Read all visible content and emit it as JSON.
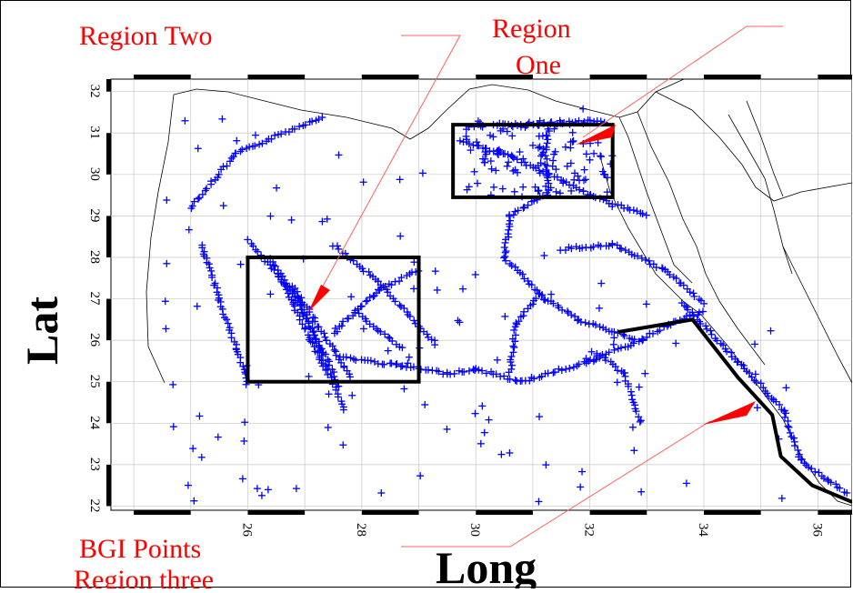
{
  "labels": {
    "region_two": "Region Two",
    "region_one_line1": "Region",
    "region_one_line2": "One",
    "bgi_line1": "BGI Points",
    "bgi_line2": "Region three",
    "lat": "Lat",
    "long": "Long"
  },
  "axes": {
    "long_ticks": [
      "26",
      "28",
      "30",
      "32",
      "34",
      "36"
    ],
    "lat_ticks": [
      "22",
      "23",
      "24",
      "25",
      "26",
      "27",
      "28",
      "29",
      "30",
      "31",
      "32"
    ],
    "long_range": [
      23.6,
      36.6
    ],
    "lat_range": [
      21.9,
      32.3
    ]
  },
  "regions": [
    {
      "name": "Region One",
      "lon": [
        29.6,
        32.4
      ],
      "lat": [
        29.45,
        31.2
      ]
    },
    {
      "name": "Region Two",
      "lon": [
        26.0,
        29.0
      ],
      "lat": [
        25.0,
        28.0
      ]
    }
  ],
  "colors": {
    "points": "#0000ff",
    "labels": "#ff0000",
    "arrows": "#ff0000",
    "boxes": "#000000",
    "coast": "#000000",
    "grid": "#c8c8c8"
  },
  "region_three_line": [
    [
      32.5,
      26.2
    ],
    [
      33.8,
      26.5
    ],
    [
      34.6,
      25.1
    ],
    [
      35.2,
      24.2
    ],
    [
      35.35,
      23.2
    ],
    [
      35.9,
      22.5
    ],
    [
      36.6,
      22.1
    ]
  ],
  "tracks": [
    [
      [
        25.2,
        28.3
      ],
      [
        25.5,
        27.0
      ],
      [
        25.8,
        25.8
      ],
      [
        26.0,
        25.0
      ]
    ],
    [
      [
        25.0,
        29.2
      ],
      [
        25.8,
        30.5
      ],
      [
        27.3,
        31.4
      ]
    ],
    [
      [
        26.0,
        28.4
      ],
      [
        26.9,
        27.0
      ],
      [
        27.7,
        24.3
      ]
    ],
    [
      [
        26.4,
        28.0
      ],
      [
        27.1,
        26.0
      ],
      [
        27.4,
        25.2
      ]
    ],
    [
      [
        26.6,
        27.6
      ],
      [
        27.3,
        25.8
      ],
      [
        27.6,
        24.9
      ]
    ],
    [
      [
        26.8,
        27.3
      ],
      [
        27.4,
        26.0
      ],
      [
        27.8,
        25.1
      ]
    ],
    [
      [
        27.5,
        28.3
      ],
      [
        28.3,
        27.4
      ],
      [
        29.3,
        25.9
      ]
    ],
    [
      [
        27.5,
        26.2
      ],
      [
        28.3,
        27.2
      ],
      [
        29.0,
        27.7
      ]
    ],
    [
      [
        27.9,
        26.7
      ],
      [
        28.7,
        25.8
      ]
    ],
    [
      [
        27.6,
        25.6
      ],
      [
        28.6,
        25.4
      ],
      [
        29.5,
        25.2
      ],
      [
        30.0,
        25.3
      ]
    ],
    [
      [
        30.0,
        25.3
      ],
      [
        30.8,
        25.0
      ],
      [
        32.0,
        25.5
      ],
      [
        32.9,
        26.0
      ],
      [
        33.4,
        26.4
      ],
      [
        34.0,
        26.7
      ]
    ],
    [
      [
        30.6,
        25.2
      ],
      [
        30.7,
        26.4
      ],
      [
        31.1,
        27.1
      ],
      [
        31.8,
        26.5
      ],
      [
        32.8,
        26.0
      ]
    ],
    [
      [
        31.2,
        27.0
      ],
      [
        30.5,
        28.0
      ],
      [
        30.6,
        29.0
      ],
      [
        31.3,
        29.6
      ]
    ],
    [
      [
        31.3,
        29.6
      ],
      [
        31.2,
        30.6
      ],
      [
        31.3,
        31.2
      ]
    ],
    [
      [
        32.1,
        25.7
      ],
      [
        32.6,
        25.2
      ],
      [
        32.9,
        24.0
      ]
    ],
    [
      [
        29.7,
        30.8
      ],
      [
        30.5,
        30.5
      ],
      [
        31.3,
        30.0
      ],
      [
        32.0,
        29.5
      ],
      [
        33.0,
        29.0
      ]
    ],
    [
      [
        31.5,
        28.2
      ],
      [
        32.4,
        28.3
      ],
      [
        33.3,
        27.7
      ],
      [
        34.0,
        26.9
      ]
    ],
    [
      [
        30.3,
        31.2
      ],
      [
        31.0,
        31.2
      ],
      [
        32.2,
        31.3
      ]
    ],
    [
      [
        33.6,
        26.9
      ],
      [
        34.6,
        25.5
      ],
      [
        35.4,
        24.3
      ],
      [
        35.7,
        23.1
      ],
      [
        36.5,
        22.3
      ]
    ]
  ]
}
